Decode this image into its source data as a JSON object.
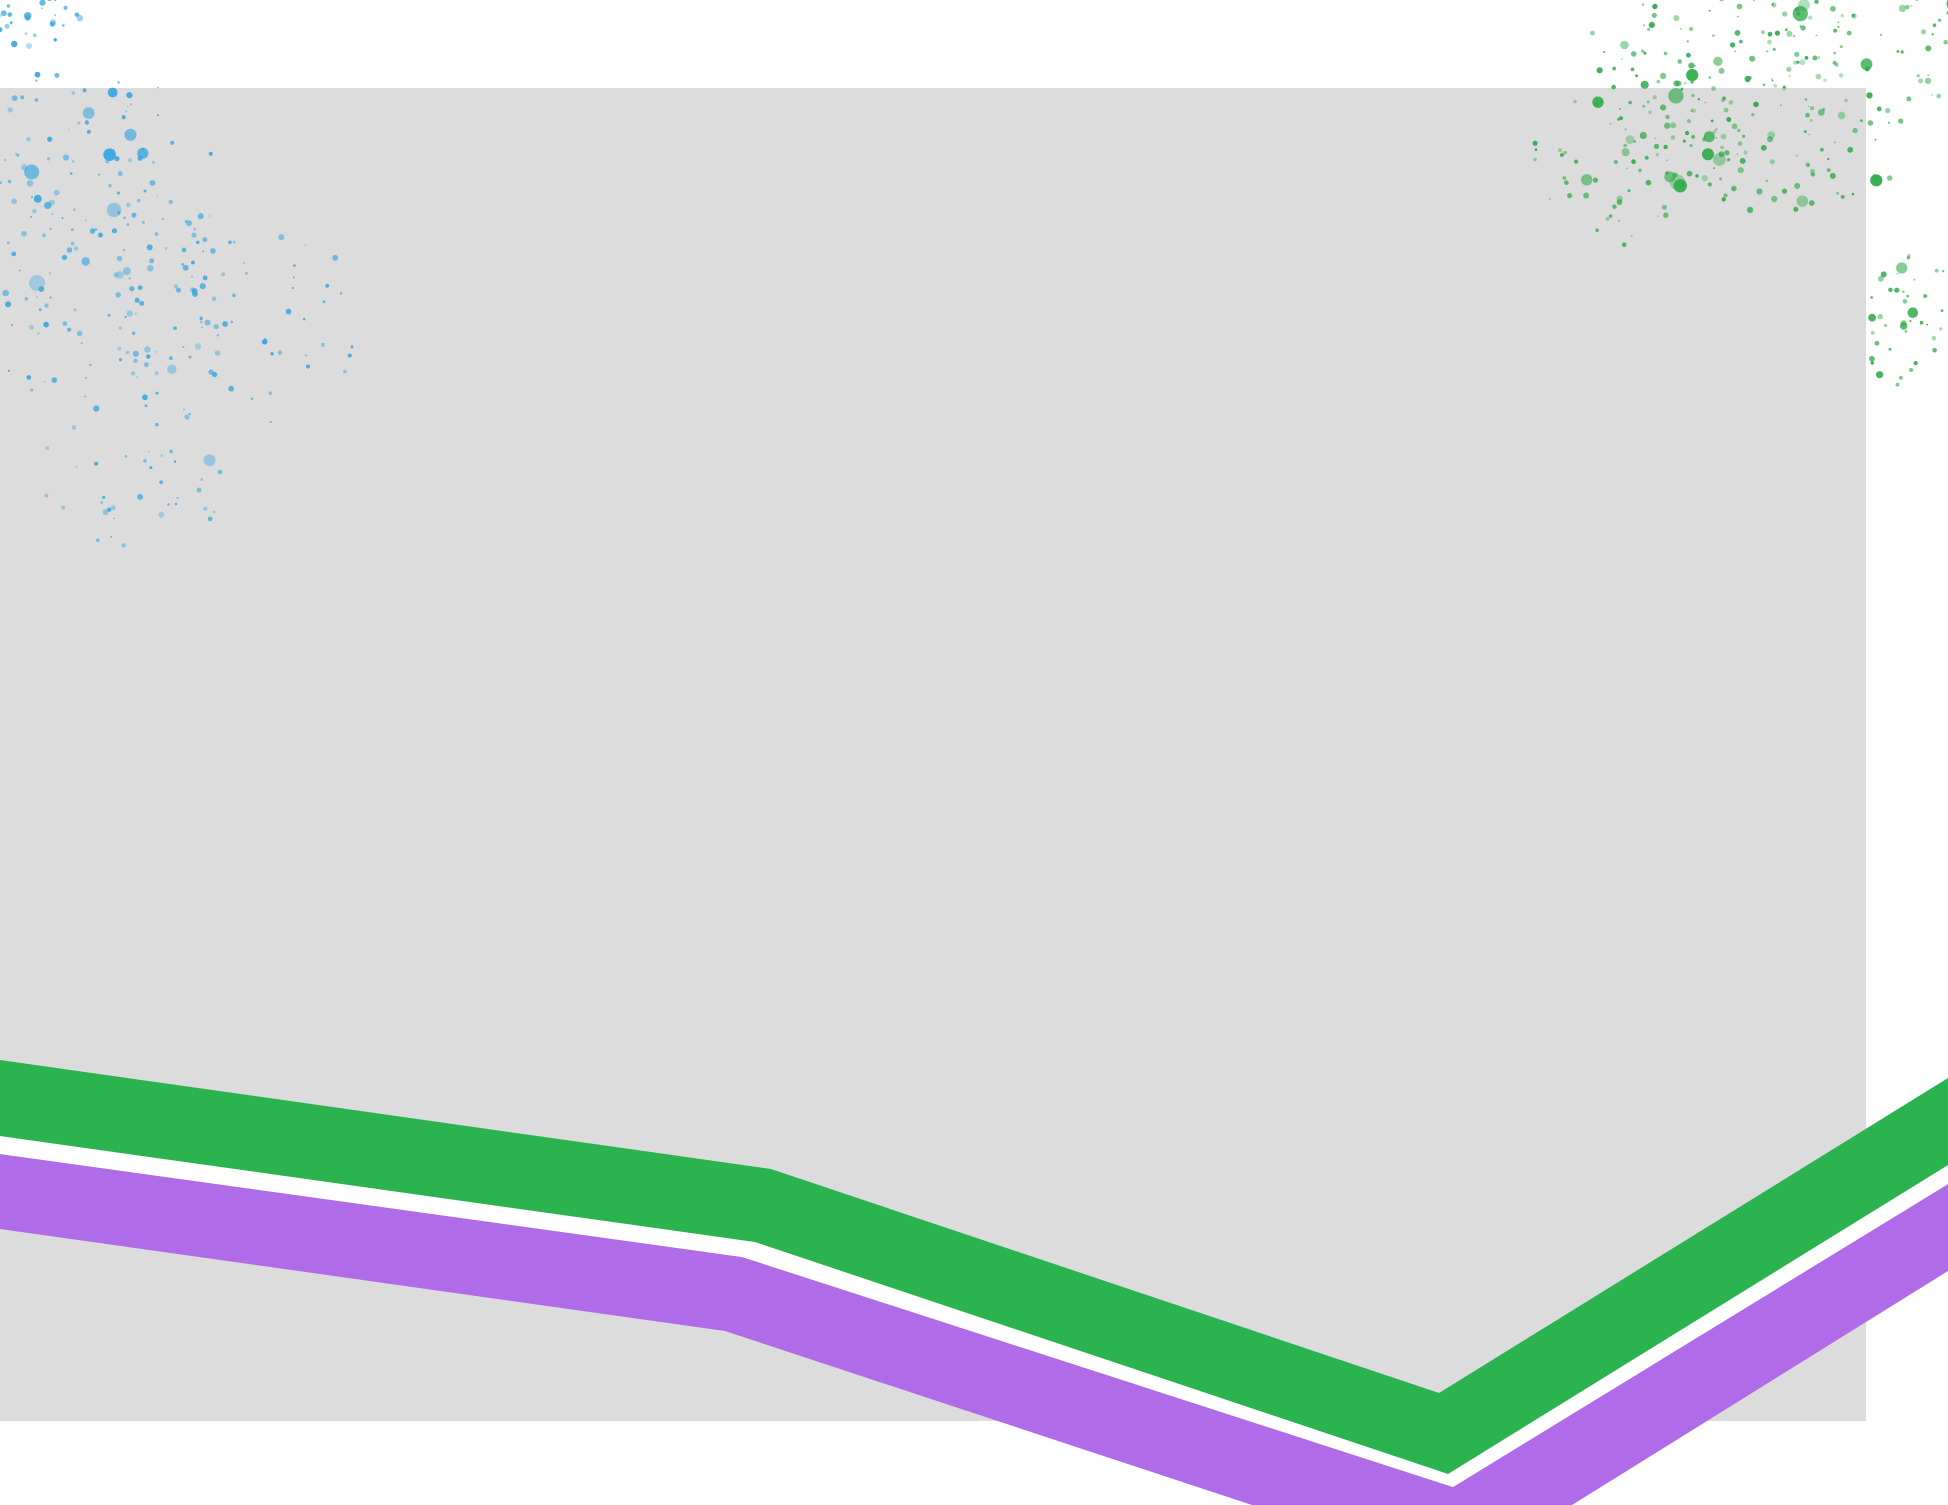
{
  "colors": {
    "background": "#ffffff",
    "panel": "#dcdcdc",
    "stripe_green": "#2bb34f",
    "stripe_purple": "#b06be8",
    "splatter_blue": "#3aa6de",
    "splatter_green": "#2eaa48"
  },
  "decorations": {
    "splatter_top_left": "paint-splatter-icon",
    "splatter_top_right": "paint-splatter-icon",
    "stripes": [
      "green-stripe",
      "purple-stripe"
    ]
  }
}
